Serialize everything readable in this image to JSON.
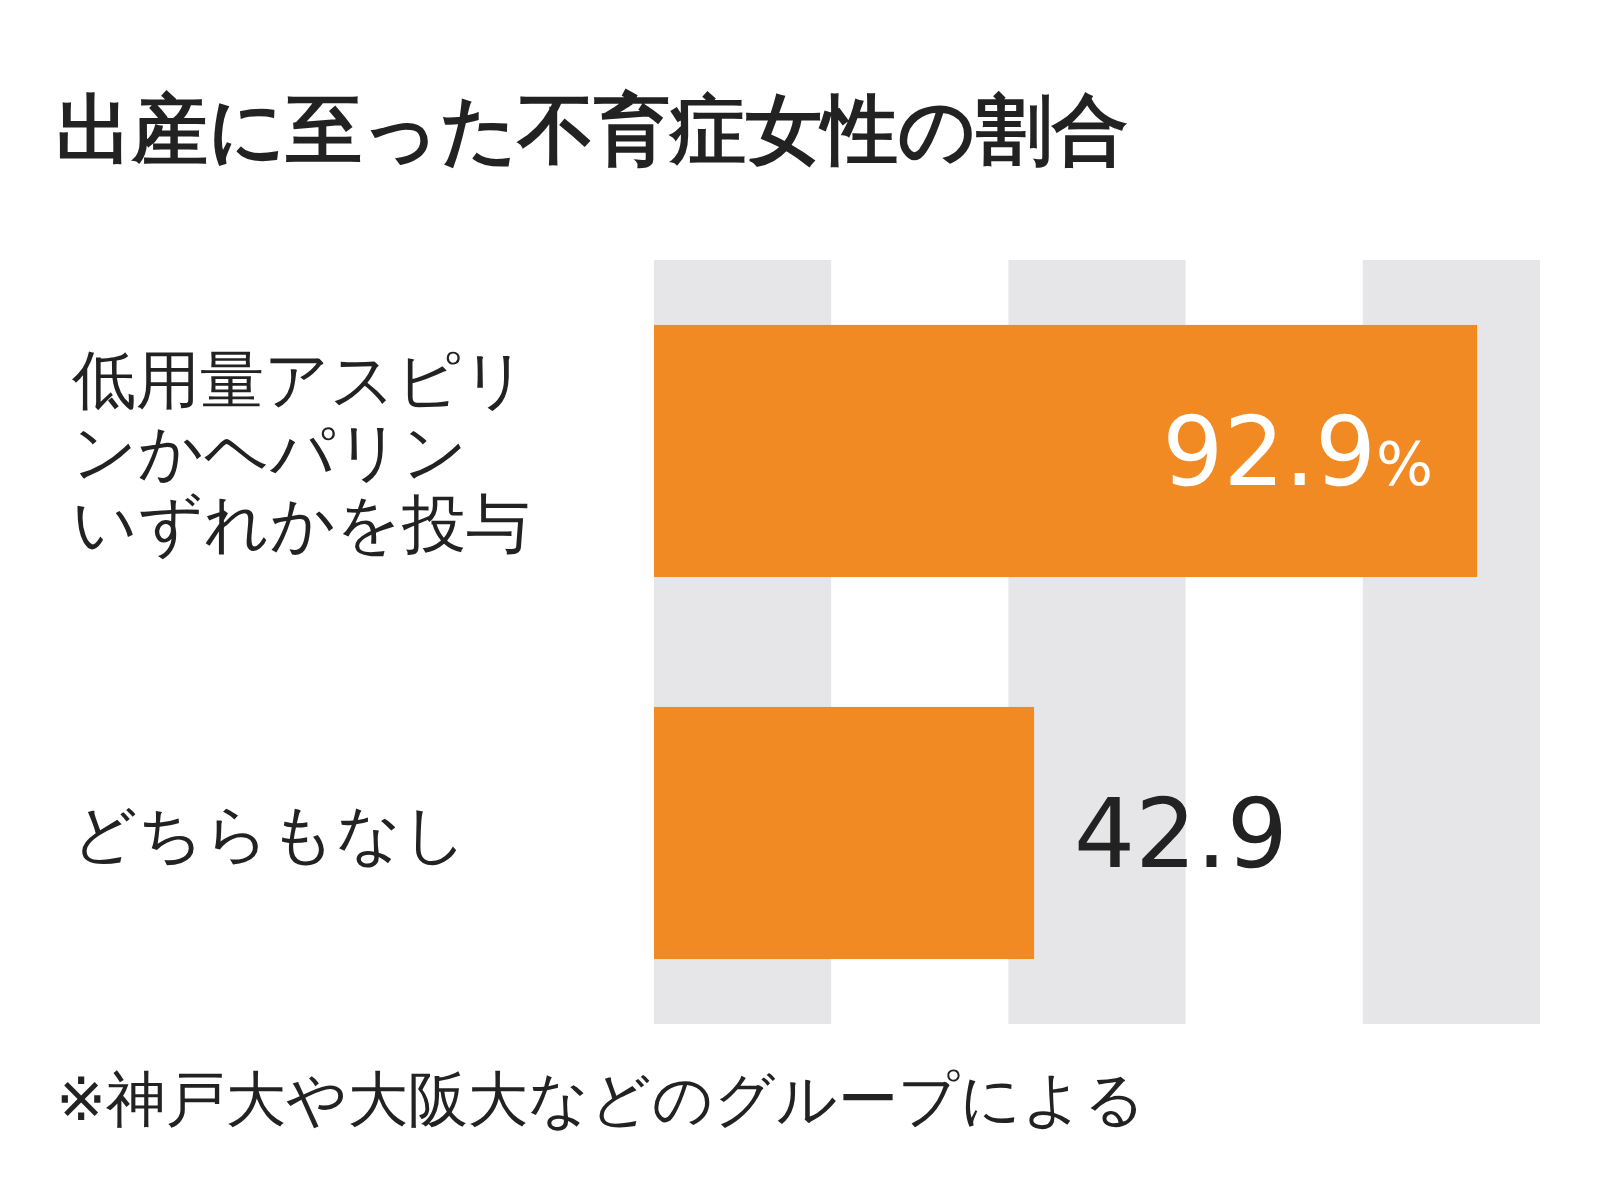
{
  "chart_data": {
    "type": "bar",
    "orientation": "horizontal",
    "title": "出産に至った不育症女性の割合",
    "categories": [
      "低用量アスピリンかヘパリンいずれかを投与",
      "どちらもなし"
    ],
    "values": [
      92.9,
      42.9
    ],
    "value_labels": [
      "92.9%",
      "42.9"
    ],
    "color": "#f28a24",
    "xlim": [
      0,
      100
    ],
    "tick_labels": "y",
    "bands": [
      {
        "axis": "x",
        "from": 0,
        "to": 20,
        "color": "#e6e6e8"
      },
      {
        "axis": "x",
        "from": 40,
        "to": 60,
        "color": "#e6e6e8"
      },
      {
        "axis": "x",
        "from": 80,
        "to": 100,
        "color": "#e6e6e8"
      }
    ],
    "annotations": [
      "※神戸大や大阪大などのグループによる"
    ]
  }
}
